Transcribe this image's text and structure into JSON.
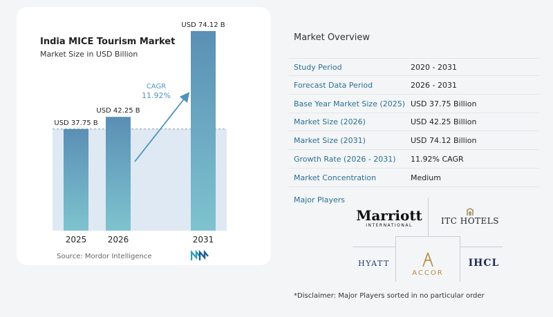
{
  "chart_data": {
    "type": "bar",
    "title": "India MICE Tourism Market",
    "subtitle": "Market Size in USD Billion",
    "categories": [
      "2025",
      "2026",
      "2031"
    ],
    "values": [
      37.75,
      42.25,
      74.12
    ],
    "value_labels": [
      "USD 37.75 B",
      "USD 42.25 B",
      "USD 74.12 B"
    ],
    "ylim": [
      0,
      80
    ],
    "annotation": {
      "label": "CAGR",
      "value": "11.92%"
    },
    "colors": {
      "bar_top": "#5b8fb5",
      "bar_bottom": "#7ec3cf",
      "shade": "#dfe9f3",
      "arrow": "#4f93bd",
      "cagr_text": "#4f93bd"
    }
  },
  "source": {
    "label": "Source:",
    "name": "Mordor Intelligence"
  },
  "overview": {
    "title": "Market Overview",
    "rows": [
      {
        "label": "Study Period",
        "value": "2020 - 2031"
      },
      {
        "label": "Forecast Data Period",
        "value": "2026 - 2031"
      },
      {
        "label": "Base Year Market Size (2025)",
        "value": "USD 37.75 Billion"
      },
      {
        "label": "Market Size (2026)",
        "value": "USD 42.25 Billion"
      },
      {
        "label": "Market Size (2031)",
        "value": "USD 74.12 Billion"
      },
      {
        "label": "Growth Rate (2026 - 2031)",
        "value": "11.92% CAGR"
      },
      {
        "label": "Market Concentration",
        "value": "Medium"
      }
    ]
  },
  "players": {
    "title": "Major Players",
    "logos": {
      "marriott_main": "Marriott",
      "marriott_sub": "INTERNATIONAL",
      "itc": "ITC HOTELS",
      "hyatt": "HYATT",
      "accor": "ACCOR",
      "ihcl": "IHCL"
    },
    "disclaimer": "*Disclaimer: Major Players sorted in no particular order"
  }
}
